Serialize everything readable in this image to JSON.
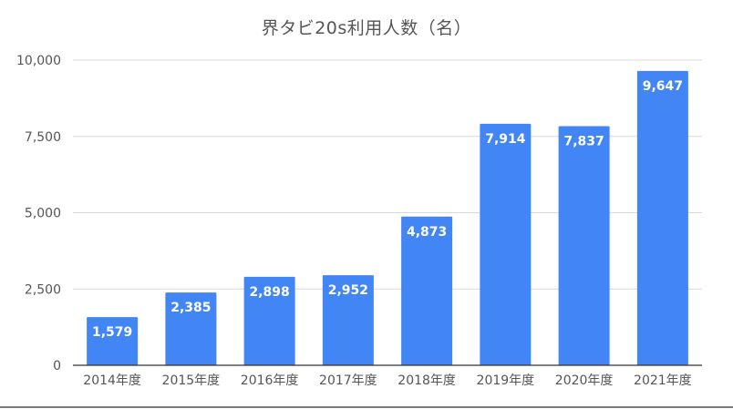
{
  "chart_data": {
    "type": "bar",
    "title": "界タビ20s利用人数（名）",
    "xlabel": "",
    "ylabel": "",
    "categories": [
      "2014年度",
      "2015年度",
      "2016年度",
      "2017年度",
      "2018年度",
      "2019年度",
      "2020年度",
      "2021年度"
    ],
    "values": [
      1579,
      2385,
      2898,
      2952,
      4873,
      7914,
      7837,
      9647
    ],
    "value_labels": [
      "1,579",
      "2,385",
      "2,898",
      "2,952",
      "4,873",
      "7,914",
      "7,837",
      "9,647"
    ],
    "ylim": [
      0,
      10000
    ],
    "yticks": [
      0,
      2500,
      5000,
      7500,
      10000
    ],
    "ytick_labels": [
      "0",
      "2,500",
      "5,000",
      "7,500",
      "10,000"
    ],
    "grid": true,
    "legend": "none",
    "colors": {
      "bar": "#4285f4",
      "grid": "#d9d9d9",
      "axis": "#333333",
      "tick_text": "#555555",
      "data_label": "#ffffff"
    }
  }
}
